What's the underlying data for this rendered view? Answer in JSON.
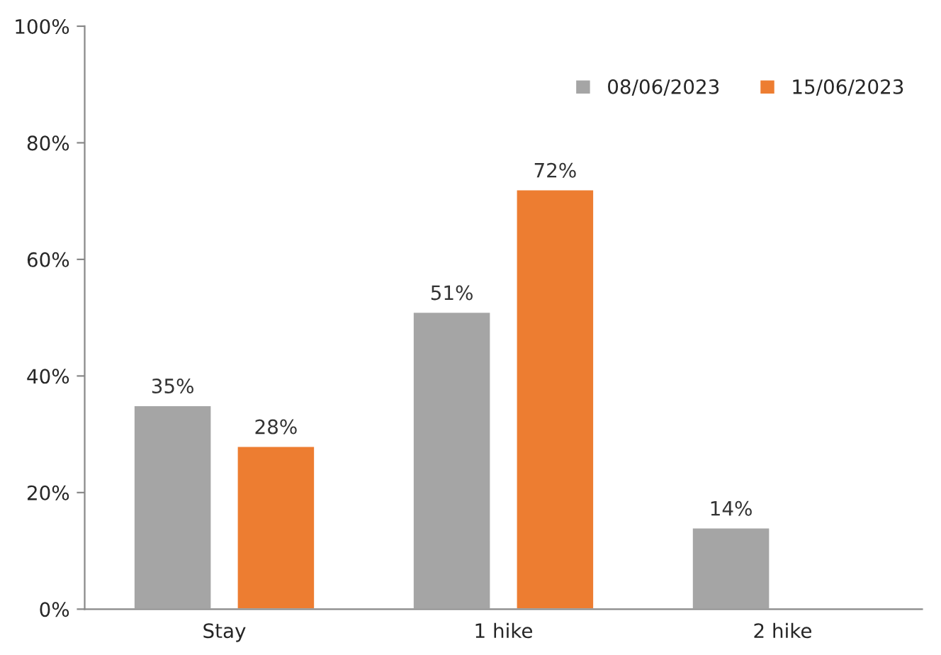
{
  "chart_data": {
    "type": "bar",
    "categories": [
      "Stay",
      "1 hike",
      "2 hike"
    ],
    "series": [
      {
        "name": "08/06/2023",
        "color": "#a5a5a5",
        "values": [
          35,
          51,
          14
        ],
        "value_labels": [
          "35%",
          "51%",
          "14%"
        ]
      },
      {
        "name": "15/06/2023",
        "color": "#ed7d31",
        "values": [
          28,
          72,
          null
        ],
        "value_labels": [
          "28%",
          "72%",
          null
        ]
      }
    ],
    "ylim": [
      0,
      100
    ],
    "yticks": [
      {
        "value": 0,
        "label": "0%"
      },
      {
        "value": 20,
        "label": "20%"
      },
      {
        "value": 40,
        "label": "40%"
      },
      {
        "value": 60,
        "label": "60%"
      },
      {
        "value": 80,
        "label": "80%"
      },
      {
        "value": 100,
        "label": "100%"
      }
    ],
    "grid": false,
    "legend": "top right"
  }
}
